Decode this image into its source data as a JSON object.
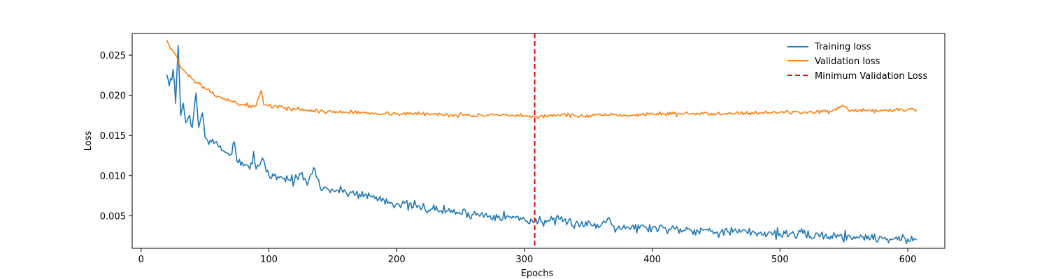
{
  "chart_data": {
    "type": "line",
    "title": "",
    "xlabel": "Epochs",
    "ylabel": "Loss",
    "xlim": [
      -7,
      629
    ],
    "ylim": [
      0.00095,
      0.0277
    ],
    "x_ticks": [
      0,
      100,
      200,
      300,
      400,
      500,
      600
    ],
    "y_ticks": [
      0.005,
      0.01,
      0.015,
      0.02,
      0.025
    ],
    "y_tick_labels": [
      "0.005",
      "0.010",
      "0.015",
      "0.020",
      "0.025"
    ],
    "grid": false,
    "legend_position": "top-right",
    "series": [
      {
        "name": "Training loss",
        "color": "#1f77b4",
        "x_start": 20,
        "x_end": 607,
        "anchors": [
          [
            20,
            0.0226
          ],
          [
            22,
            0.0212
          ],
          [
            25,
            0.0232
          ],
          [
            27,
            0.019
          ],
          [
            29,
            0.0262
          ],
          [
            31,
            0.0175
          ],
          [
            33,
            0.019
          ],
          [
            35,
            0.0166
          ],
          [
            38,
            0.0175
          ],
          [
            40,
            0.016
          ],
          [
            43,
            0.0203
          ],
          [
            45,
            0.016
          ],
          [
            48,
            0.0178
          ],
          [
            50,
            0.0148
          ],
          [
            55,
            0.0142
          ],
          [
            60,
            0.0138
          ],
          [
            65,
            0.013
          ],
          [
            70,
            0.0126
          ],
          [
            73,
            0.0142
          ],
          [
            75,
            0.0118
          ],
          [
            80,
            0.0112
          ],
          [
            85,
            0.0108
          ],
          [
            88,
            0.013
          ],
          [
            90,
            0.0108
          ],
          [
            95,
            0.0122
          ],
          [
            100,
            0.01
          ],
          [
            110,
            0.0098
          ],
          [
            120,
            0.0094
          ],
          [
            125,
            0.0102
          ],
          [
            130,
            0.0088
          ],
          [
            135,
            0.011
          ],
          [
            140,
            0.0086
          ],
          [
            150,
            0.0082
          ],
          [
            160,
            0.008
          ],
          [
            175,
            0.0076
          ],
          [
            190,
            0.007
          ],
          [
            200,
            0.0065
          ],
          [
            220,
            0.006
          ],
          [
            240,
            0.0056
          ],
          [
            260,
            0.0052
          ],
          [
            280,
            0.005
          ],
          [
            300,
            0.0046
          ],
          [
            308,
            0.0043
          ],
          [
            320,
            0.0044
          ],
          [
            340,
            0.0041
          ],
          [
            360,
            0.0038
          ],
          [
            366,
            0.0048
          ],
          [
            370,
            0.0037
          ],
          [
            380,
            0.0036
          ],
          [
            400,
            0.0035
          ],
          [
            420,
            0.0034
          ],
          [
            440,
            0.0032
          ],
          [
            460,
            0.003
          ],
          [
            480,
            0.0029
          ],
          [
            500,
            0.0028
          ],
          [
            520,
            0.0026
          ],
          [
            540,
            0.0025
          ],
          [
            560,
            0.0024
          ],
          [
            580,
            0.0022
          ],
          [
            600,
            0.0021
          ],
          [
            607,
            0.002
          ]
        ],
        "noise": 0.00042,
        "seed": 7
      },
      {
        "name": "Validation loss",
        "color": "#ff7f0e",
        "x_start": 20,
        "x_end": 607,
        "anchors": [
          [
            20,
            0.0269
          ],
          [
            22,
            0.0262
          ],
          [
            25,
            0.0255
          ],
          [
            28,
            0.0248
          ],
          [
            30,
            0.0238
          ],
          [
            35,
            0.0228
          ],
          [
            40,
            0.022
          ],
          [
            45,
            0.0215
          ],
          [
            50,
            0.0208
          ],
          [
            55,
            0.0203
          ],
          [
            60,
            0.0199
          ],
          [
            65,
            0.0196
          ],
          [
            70,
            0.0193
          ],
          [
            75,
            0.019
          ],
          [
            80,
            0.0188
          ],
          [
            90,
            0.0187
          ],
          [
            94,
            0.0206
          ],
          [
            96,
            0.0188
          ],
          [
            100,
            0.0187
          ],
          [
            120,
            0.0183
          ],
          [
            140,
            0.018
          ],
          [
            160,
            0.0179
          ],
          [
            180,
            0.0178
          ],
          [
            200,
            0.0177
          ],
          [
            220,
            0.0177
          ],
          [
            240,
            0.0176
          ],
          [
            260,
            0.0175
          ],
          [
            280,
            0.0175
          ],
          [
            300,
            0.0174
          ],
          [
            308,
            0.0173
          ],
          [
            320,
            0.0175
          ],
          [
            330,
            0.0176
          ],
          [
            340,
            0.0174
          ],
          [
            360,
            0.0175
          ],
          [
            380,
            0.0175
          ],
          [
            400,
            0.0177
          ],
          [
            420,
            0.0177
          ],
          [
            440,
            0.0177
          ],
          [
            460,
            0.0178
          ],
          [
            480,
            0.0178
          ],
          [
            500,
            0.0179
          ],
          [
            520,
            0.0179
          ],
          [
            540,
            0.018
          ],
          [
            551,
            0.0186
          ],
          [
            555,
            0.018
          ],
          [
            580,
            0.0181
          ],
          [
            600,
            0.0182
          ],
          [
            607,
            0.0182
          ]
        ],
        "noise": 0.00016,
        "seed": 13
      }
    ],
    "reference_line": {
      "name": "Minimum Validation Loss",
      "x": 308,
      "color": "#ff0000"
    }
  }
}
